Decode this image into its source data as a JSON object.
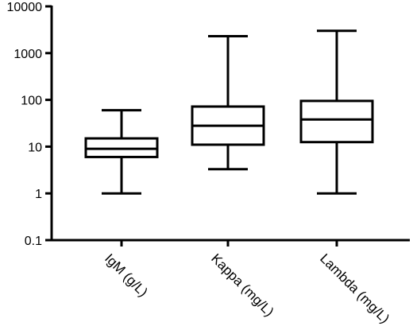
{
  "chart_data": {
    "type": "boxplot",
    "title": "",
    "xlabel": "",
    "ylabel": "",
    "yscale": "log",
    "ylim": [
      0.1,
      10000
    ],
    "y_ticks": [
      {
        "value": 0.1,
        "label": "0.1"
      },
      {
        "value": 1,
        "label": "1"
      },
      {
        "value": 10,
        "label": "10"
      },
      {
        "value": 100,
        "label": "100"
      },
      {
        "value": 1000,
        "label": "1000"
      },
      {
        "value": 10000,
        "label": "10000"
      }
    ],
    "categories": [
      "IgM (g/L)",
      "Kappa (mg/L)",
      "Lambda (mg/L)"
    ],
    "boxes": [
      {
        "category": "IgM (g/L)",
        "min": 1.0,
        "q1": 6.0,
        "median": 9.0,
        "q3": 15.0,
        "max": 60.0
      },
      {
        "category": "Kappa (mg/L)",
        "min": 3.3,
        "q1": 11.0,
        "median": 28.0,
        "q3": 72.0,
        "max": 2300.0
      },
      {
        "category": "Lambda (mg/L)",
        "min": 1.0,
        "q1": 12.5,
        "median": 38.0,
        "q3": 95.0,
        "max": 3000.0
      }
    ],
    "grid": false,
    "legend": "none",
    "colors": {
      "stroke": "#000000",
      "background": "#ffffff"
    }
  }
}
